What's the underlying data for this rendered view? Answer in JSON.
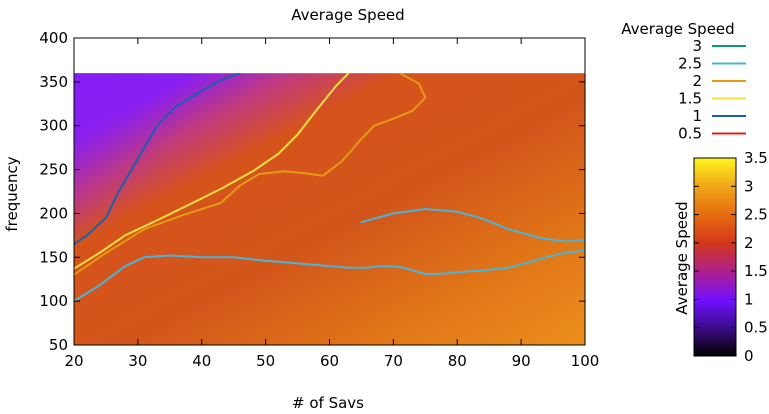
{
  "chart_data": {
    "type": "heatmap",
    "title": "Average Speed",
    "xlabel": "# of Savs",
    "ylabel": "frequency",
    "xlim": [
      20,
      100
    ],
    "ylim": [
      50,
      400
    ],
    "x_ticks": [
      "20",
      "30",
      "40",
      "50",
      "60",
      "70",
      "80",
      "90",
      "100"
    ],
    "y_ticks": [
      "50",
      "100",
      "150",
      "200",
      "250",
      "300",
      "350",
      "400"
    ],
    "data_x_range": [
      20,
      100
    ],
    "data_y_range": [
      50,
      360
    ],
    "legend": {
      "title": "Average Speed",
      "position": "top-right",
      "entries": [
        {
          "label": "3",
          "color": "#0f9a6e"
        },
        {
          "label": "2.5",
          "color": "#4ab3d9"
        },
        {
          "label": "2",
          "color": "#e39a14"
        },
        {
          "label": "1.5",
          "color": "#f0e040"
        },
        {
          "label": "1",
          "color": "#1a5fb0"
        },
        {
          "label": "0.5",
          "color": "#e02020"
        }
      ]
    },
    "colorbar": {
      "label": "Average Speed",
      "range": [
        0,
        3.5
      ],
      "ticks": [
        "0",
        "0.5",
        "1",
        "1.5",
        "2",
        "2.5",
        "3",
        "3.5"
      ],
      "palette": "black-purple-red-orange-yellow"
    },
    "contours": [
      {
        "level": 1,
        "color": "#1a5fb0",
        "points": [
          [
            20,
            165
          ],
          [
            22,
            175
          ],
          [
            25,
            195
          ],
          [
            27,
            225
          ],
          [
            29,
            250
          ],
          [
            31,
            275
          ],
          [
            33,
            300
          ],
          [
            36,
            322
          ],
          [
            40,
            340
          ],
          [
            43,
            352
          ],
          [
            46,
            360
          ]
        ]
      },
      {
        "level": 1.5,
        "color": "#f0e040",
        "points": [
          [
            20,
            137
          ],
          [
            24,
            155
          ],
          [
            28,
            175
          ],
          [
            33,
            192
          ],
          [
            38,
            210
          ],
          [
            43,
            228
          ],
          [
            48,
            248
          ],
          [
            52,
            268
          ],
          [
            55,
            290
          ],
          [
            58,
            318
          ],
          [
            61,
            345
          ],
          [
            63,
            360
          ]
        ]
      },
      {
        "level": 2,
        "color": "#e39a14",
        "points": [
          [
            20,
            130
          ],
          [
            25,
            155
          ],
          [
            31,
            182
          ],
          [
            37,
            198
          ],
          [
            43,
            212
          ],
          [
            46,
            232
          ],
          [
            49,
            245
          ],
          [
            53,
            248
          ],
          [
            56,
            246
          ],
          [
            59,
            243
          ],
          [
            62,
            260
          ],
          [
            65,
            285
          ],
          [
            67,
            300
          ],
          [
            70,
            308
          ],
          [
            73,
            317
          ],
          [
            75,
            332
          ],
          [
            74,
            348
          ],
          [
            71,
            360
          ]
        ]
      },
      {
        "level": 2.5,
        "color": "#4ab3d9",
        "points": [
          [
            20,
            100
          ],
          [
            24,
            118
          ],
          [
            28,
            140
          ],
          [
            31,
            150
          ],
          [
            35,
            152
          ],
          [
            40,
            150
          ],
          [
            45,
            150
          ],
          [
            50,
            146
          ],
          [
            55,
            143
          ],
          [
            60,
            140
          ],
          [
            63,
            138
          ],
          [
            66,
            138
          ],
          [
            68,
            140
          ],
          [
            71,
            139
          ],
          [
            73,
            135
          ],
          [
            75,
            131
          ],
          [
            77,
            131
          ],
          [
            80,
            133
          ],
          [
            84,
            135
          ],
          [
            88,
            138
          ],
          [
            92,
            146
          ],
          [
            96,
            154
          ],
          [
            100,
            158
          ]
        ]
      },
      {
        "level": 2.5,
        "color": "#4ab3d9",
        "points": [
          [
            65,
            190
          ],
          [
            70,
            200
          ],
          [
            75,
            205
          ],
          [
            80,
            202
          ],
          [
            84,
            194
          ],
          [
            88,
            182
          ],
          [
            93,
            172
          ],
          [
            97,
            168
          ],
          [
            100,
            170
          ]
        ]
      }
    ]
  }
}
